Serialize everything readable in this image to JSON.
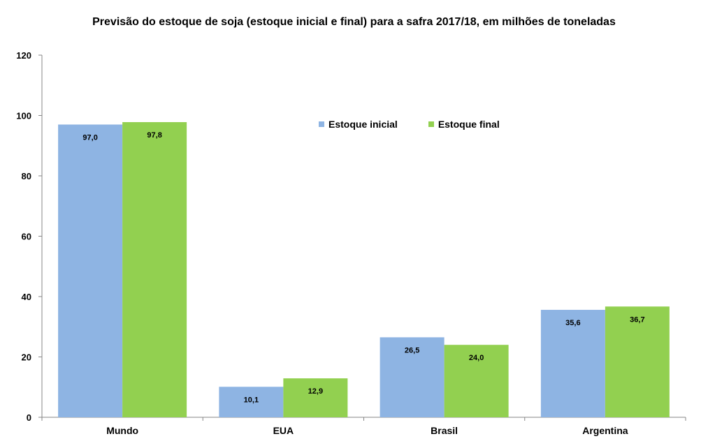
{
  "chart_data": {
    "type": "bar",
    "title": "Previsão do estoque de soja (estoque inicial e final) para a  safra 2017/18, em milhões de toneladas",
    "categories": [
      "Mundo",
      "EUA",
      "Brasil",
      "Argentina"
    ],
    "series": [
      {
        "name": "Estoque inicial",
        "values": [
          97.0,
          10.1,
          26.5,
          35.6
        ],
        "labels": [
          "97,0",
          "10,1",
          "26,5",
          "35,6"
        ],
        "color": "#8EB4E3"
      },
      {
        "name": "Estoque final",
        "values": [
          97.8,
          12.9,
          24.0,
          36.7
        ],
        "labels": [
          "97,8",
          "12,9",
          "24,0",
          "36,7"
        ],
        "color": "#92D050"
      }
    ],
    "ylim": [
      0,
      120
    ],
    "yticks": [
      0,
      20,
      40,
      60,
      80,
      100,
      120
    ],
    "xlabel": "",
    "ylabel": "",
    "grid": false,
    "legend_position": "top-right"
  }
}
